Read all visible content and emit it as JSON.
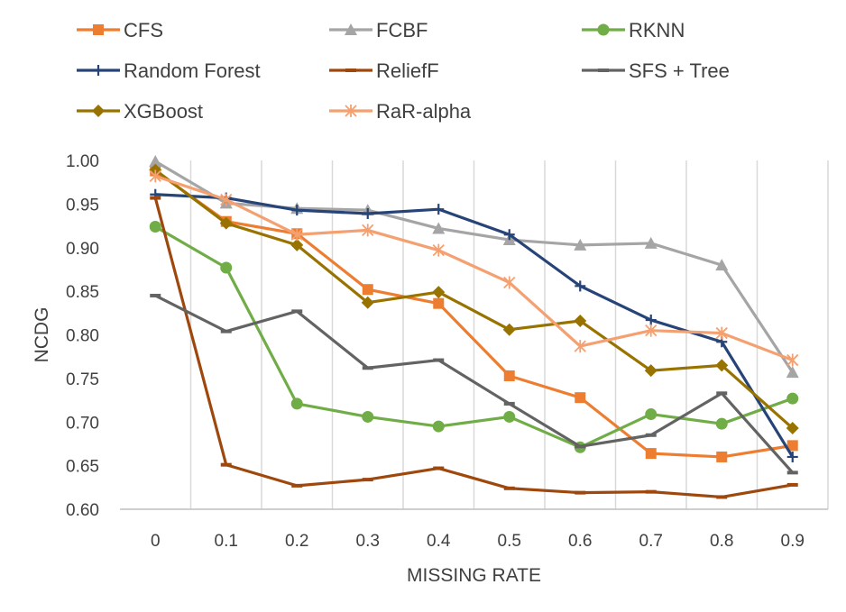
{
  "chart_data": {
    "type": "line",
    "xlabel": "MISSING RATE",
    "ylabel": "NCDG",
    "ylim": [
      0.6,
      1.0
    ],
    "y_ticks": [
      "1.00",
      "0.95",
      "0.90",
      "0.85",
      "0.80",
      "0.75",
      "0.70",
      "0.65",
      "0.60"
    ],
    "categories": [
      "0",
      "0.1",
      "0.2",
      "0.3",
      "0.4",
      "0.5",
      "0.6",
      "0.7",
      "0.8",
      "0.9"
    ],
    "grid": "vertical",
    "legend_position": "top",
    "series": [
      {
        "name": "CFS",
        "color": "#ED7D31",
        "marker": "square",
        "values": [
          0.988,
          0.93,
          0.916,
          0.852,
          0.836,
          0.753,
          0.728,
          0.664,
          0.66,
          0.673
        ]
      },
      {
        "name": "FCBF",
        "color": "#A5A5A5",
        "marker": "triangle",
        "values": [
          0.999,
          0.951,
          0.945,
          0.943,
          0.922,
          0.909,
          0.903,
          0.905,
          0.88,
          0.757
        ]
      },
      {
        "name": "RKNN",
        "color": "#70AD47",
        "marker": "circle",
        "values": [
          0.924,
          0.877,
          0.721,
          0.706,
          0.695,
          0.706,
          0.671,
          0.709,
          0.698,
          0.727
        ]
      },
      {
        "name": "Random Forest",
        "color": "#264478",
        "marker": "plus",
        "values": [
          0.961,
          0.957,
          0.943,
          0.939,
          0.944,
          0.915,
          0.856,
          0.817,
          0.792,
          0.66
        ]
      },
      {
        "name": "ReliefF",
        "color": "#9E480E",
        "marker": "dash",
        "values": [
          0.957,
          0.651,
          0.627,
          0.634,
          0.647,
          0.624,
          0.619,
          0.62,
          0.614,
          0.628
        ]
      },
      {
        "name": "SFS + Tree",
        "color": "#636363",
        "marker": "dash",
        "values": [
          0.845,
          0.804,
          0.827,
          0.762,
          0.771,
          0.721,
          0.672,
          0.685,
          0.733,
          0.642
        ]
      },
      {
        "name": "XGBoost",
        "color": "#997300",
        "marker": "diamond",
        "values": [
          0.989,
          0.928,
          0.903,
          0.837,
          0.849,
          0.806,
          0.816,
          0.759,
          0.765,
          0.693
        ]
      },
      {
        "name": "RaR-alpha",
        "color": "#F4A070",
        "marker": "asterisk",
        "values": [
          0.982,
          0.955,
          0.915,
          0.92,
          0.897,
          0.86,
          0.787,
          0.805,
          0.802,
          0.771
        ]
      }
    ]
  }
}
